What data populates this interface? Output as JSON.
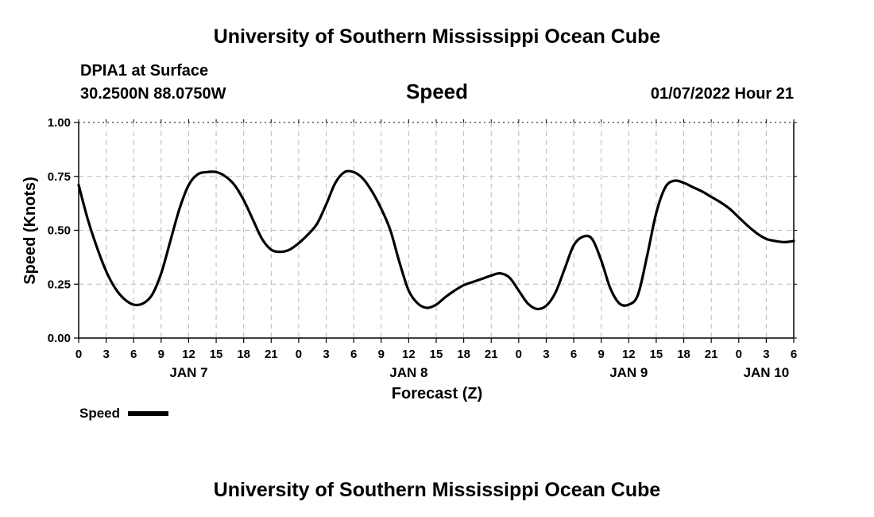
{
  "header": {
    "title": "University of Southern Mississippi Ocean Cube",
    "station": "DPIA1 at Surface",
    "coords": "30.2500N  88.0750W",
    "variable": "Speed",
    "datetime": "01/07/2022 Hour 21"
  },
  "footer": {
    "title": "University of Southern Mississippi Ocean Cube"
  },
  "legend": {
    "label": "Speed"
  },
  "chart_data": {
    "type": "line",
    "title": "Speed",
    "xlabel": "Forecast (Z)",
    "ylabel": "Speed (Knots)",
    "xlim": [
      0,
      78
    ],
    "ylim": [
      0,
      1
    ],
    "grid": true,
    "legend_position": "bottom-left",
    "x_ticks": [
      0,
      3,
      6,
      9,
      12,
      15,
      18,
      21,
      24,
      27,
      30,
      33,
      36,
      39,
      42,
      45,
      48,
      51,
      54,
      57,
      60,
      63,
      66,
      69,
      72,
      75,
      78
    ],
    "x_tick_labels": [
      "0",
      "3",
      "6",
      "9",
      "12",
      "15",
      "18",
      "21",
      "0",
      "3",
      "6",
      "9",
      "12",
      "15",
      "18",
      "21",
      "0",
      "3",
      "6",
      "9",
      "12",
      "15",
      "18",
      "21",
      "0",
      "3",
      "6"
    ],
    "date_labels": [
      {
        "x": 12,
        "label": "JAN 7"
      },
      {
        "x": 36,
        "label": "JAN 8"
      },
      {
        "x": 60,
        "label": "JAN 9"
      },
      {
        "x": 75,
        "label": "JAN 10"
      }
    ],
    "y_ticks": [
      0,
      0.25,
      0.5,
      0.75,
      1.0
    ],
    "y_tick_labels": [
      "0.00",
      "0.25",
      "0.50",
      "0.75",
      "1.00"
    ],
    "series": [
      {
        "name": "Speed",
        "color": "#000000",
        "x": [
          0,
          1,
          2,
          3,
          4,
          5,
          6,
          7,
          8,
          9,
          10,
          11,
          12,
          13,
          14,
          15,
          16,
          17,
          18,
          19,
          20,
          21,
          22,
          23,
          24,
          25,
          26,
          27,
          28,
          29,
          30,
          31,
          32,
          33,
          34,
          35,
          36,
          37,
          38,
          39,
          40,
          41,
          42,
          43,
          44,
          45,
          46,
          47,
          48,
          49,
          50,
          51,
          52,
          53,
          54,
          55,
          56,
          57,
          58,
          59,
          60,
          61,
          62,
          63,
          64,
          65,
          66,
          67,
          68,
          69,
          70,
          71,
          72,
          73,
          74,
          75,
          76,
          77,
          78
        ],
        "values": [
          0.71,
          0.55,
          0.42,
          0.31,
          0.23,
          0.18,
          0.155,
          0.16,
          0.2,
          0.3,
          0.45,
          0.6,
          0.71,
          0.76,
          0.77,
          0.77,
          0.75,
          0.71,
          0.64,
          0.55,
          0.46,
          0.41,
          0.4,
          0.41,
          0.44,
          0.48,
          0.53,
          0.62,
          0.72,
          0.77,
          0.77,
          0.74,
          0.68,
          0.6,
          0.5,
          0.35,
          0.22,
          0.16,
          0.14,
          0.155,
          0.19,
          0.22,
          0.245,
          0.26,
          0.275,
          0.29,
          0.3,
          0.28,
          0.22,
          0.16,
          0.135,
          0.15,
          0.21,
          0.32,
          0.43,
          0.47,
          0.46,
          0.36,
          0.23,
          0.16,
          0.155,
          0.2,
          0.38,
          0.58,
          0.7,
          0.73,
          0.72,
          0.7,
          0.68,
          0.655,
          0.63,
          0.6,
          0.56,
          0.52,
          0.485,
          0.46,
          0.45,
          0.445,
          0.45
        ]
      }
    ]
  }
}
